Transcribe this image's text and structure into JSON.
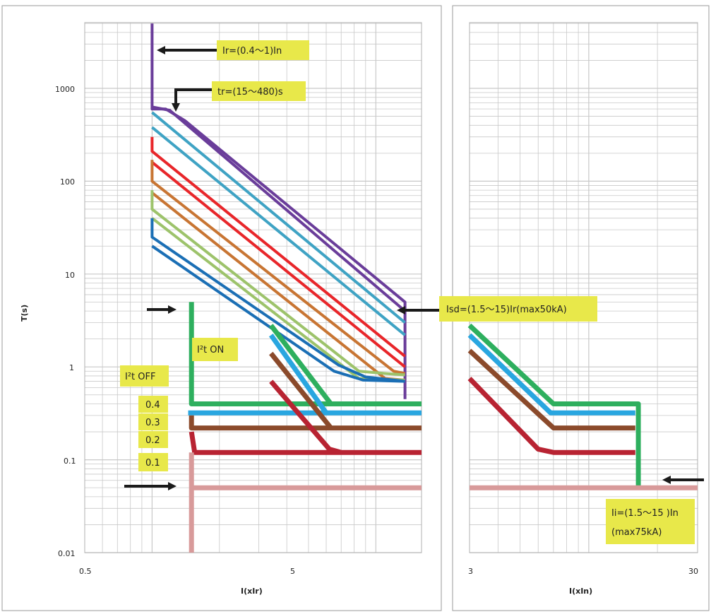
{
  "chart_data": [
    {
      "type": "line",
      "xscale": "log",
      "yscale": "log",
      "xlabel": "I(xIr)",
      "ylabel": "T(s)",
      "xlim": [
        0.5,
        16
      ],
      "ylim": [
        0.01,
        5000
      ],
      "x_ticks": [
        "0.5",
        "5"
      ],
      "y_ticks": [
        "0.01",
        "0.1",
        "1",
        "10",
        "100",
        "1000"
      ],
      "grid": true,
      "series": [
        {
          "color": "#6a3d9a",
          "points": [
            [
              1.0,
              5000
            ],
            [
              1.0,
              600
            ],
            [
              1.15,
              600
            ],
            [
              1.4,
              450
            ],
            [
              13.5,
              5
            ],
            [
              13.5,
              0.45
            ]
          ]
        },
        {
          "color": "#6a3d9a",
          "points": [
            [
              1.0,
              630
            ],
            [
              1.2,
              580
            ],
            [
              13.5,
              4
            ]
          ]
        },
        {
          "color": "#3fa3c4",
          "points": [
            [
              1.0,
              550
            ],
            [
              13.5,
              3.0
            ]
          ]
        },
        {
          "color": "#3fa3c4",
          "points": [
            [
              1.0,
              380
            ],
            [
              13.5,
              2.2
            ]
          ]
        },
        {
          "color": "#e8262a",
          "points": [
            [
              1.0,
              300
            ],
            [
              1.0,
              210
            ],
            [
              13.5,
              1.3
            ]
          ]
        },
        {
          "color": "#e8262a",
          "points": [
            [
              1.0,
              160
            ],
            [
              13.5,
              1.0
            ]
          ]
        },
        {
          "color": "#c87533",
          "points": [
            [
              1.0,
              170
            ],
            [
              1.0,
              100
            ],
            [
              12,
              0.9
            ],
            [
              13.5,
              0.85
            ]
          ]
        },
        {
          "color": "#c87533",
          "points": [
            [
              1.0,
              75
            ],
            [
              11,
              0.75
            ],
            [
              13.5,
              0.72
            ]
          ]
        },
        {
          "color": "#9dc36b",
          "points": [
            [
              1.0,
              80
            ],
            [
              1.0,
              50
            ],
            [
              8.4,
              0.9
            ],
            [
              11,
              0.85
            ],
            [
              13.5,
              0.82
            ]
          ]
        },
        {
          "color": "#9dc36b",
          "points": [
            [
              1.0,
              40
            ],
            [
              8.4,
              0.75
            ],
            [
              13.5,
              0.72
            ]
          ]
        },
        {
          "color": "#1b6fb5",
          "points": [
            [
              1.0,
              40
            ],
            [
              1.0,
              25
            ],
            [
              6.8,
              1.05
            ],
            [
              9,
              0.78
            ],
            [
              13.5,
              0.7
            ]
          ]
        },
        {
          "color": "#1b6fb5",
          "points": [
            [
              1.0,
              20
            ],
            [
              6.5,
              0.9
            ],
            [
              8.8,
              0.72
            ],
            [
              13.5,
              0.7
            ]
          ]
        },
        {
          "color": "#2eaf5e",
          "points": [
            [
              1.5,
              5
            ],
            [
              1.5,
              0.4
            ],
            [
              16,
              0.4
            ]
          ],
          "width": 7
        },
        {
          "color": "#2eaf5e",
          "points": [
            [
              3.4,
              2.8
            ],
            [
              6.3,
              0.4
            ]
          ],
          "width": 7
        },
        {
          "color": "#29a6e0",
          "points": [
            [
              1.45,
              0.32
            ],
            [
              16,
              0.32
            ]
          ],
          "width": 7
        },
        {
          "color": "#29a6e0",
          "points": [
            [
              3.4,
              2.2
            ],
            [
              6,
              0.32
            ]
          ],
          "width": 7
        },
        {
          "color": "#8b4a2b",
          "points": [
            [
              1.5,
              0.3
            ],
            [
              1.5,
              0.22
            ],
            [
              16,
              0.22
            ]
          ],
          "width": 7
        },
        {
          "color": "#8b4a2b",
          "points": [
            [
              3.4,
              1.4
            ],
            [
              6.3,
              0.22
            ]
          ],
          "width": 7
        },
        {
          "color": "#b82332",
          "points": [
            [
              1.5,
              0.2
            ],
            [
              1.55,
              0.12
            ],
            [
              16,
              0.12
            ]
          ],
          "width": 7
        },
        {
          "color": "#b82332",
          "points": [
            [
              3.4,
              0.7
            ],
            [
              6.2,
              0.13
            ],
            [
              7,
              0.12
            ]
          ],
          "width": 7
        },
        {
          "color": "#d89a9a",
          "points": [
            [
              1.5,
              0.12
            ],
            [
              1.5,
              0.01
            ]
          ],
          "width": 7
        },
        {
          "color": "#d89a9a",
          "points": [
            [
              1.5,
              0.05
            ],
            [
              16,
              0.05
            ]
          ],
          "width": 7
        }
      ]
    },
    {
      "type": "line",
      "xscale": "log",
      "yscale": "log",
      "xlabel": "I(xIn)",
      "xlim": [
        3,
        30
      ],
      "ylim": [
        0.01,
        5000
      ],
      "x_ticks": [
        "3",
        "30"
      ],
      "grid": true,
      "series": [
        {
          "color": "#2eaf5e",
          "points": [
            [
              3,
              2.8
            ],
            [
              7,
              0.4
            ],
            [
              16.5,
              0.4
            ],
            [
              16.5,
              0.05
            ]
          ],
          "width": 7
        },
        {
          "color": "#29a6e0",
          "points": [
            [
              3,
              2.2
            ],
            [
              6.8,
              0.32
            ],
            [
              16,
              0.32
            ]
          ],
          "width": 7
        },
        {
          "color": "#8b4a2b",
          "points": [
            [
              3,
              1.5
            ],
            [
              7,
              0.22
            ],
            [
              16,
              0.22
            ]
          ],
          "width": 7
        },
        {
          "color": "#b82332",
          "points": [
            [
              3,
              0.75
            ],
            [
              6,
              0.13
            ],
            [
              7,
              0.12
            ],
            [
              16,
              0.12
            ]
          ],
          "width": 7
        },
        {
          "color": "#d89a9a",
          "points": [
            [
              3,
              0.05
            ],
            [
              30,
              0.05
            ]
          ],
          "width": 7
        }
      ]
    }
  ],
  "annotations": {
    "ir": "Ir=(0.4～1)In",
    "tr": "tr=(15～480)s",
    "isd": "Isd=(1.5～15)Ir(max50kA)",
    "i2t_on": "I²t ON",
    "i2t_off": "I²t OFF",
    "t04": "0.4",
    "t03": "0.3",
    "t02": "0.2",
    "t01": "0.1",
    "ii_line1": "Ii=(1.5～15 )In",
    "ii_line2": "(max75kA)"
  },
  "colors": {
    "annotation_bg": "#e8e84a",
    "grid": "#c8c8c8",
    "frame": "#9a9a9a",
    "arrow": "#1a1a1a"
  }
}
